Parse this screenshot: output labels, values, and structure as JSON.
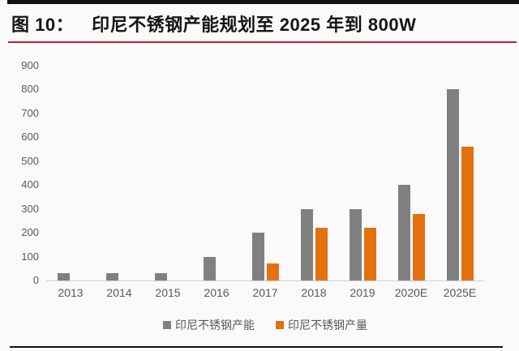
{
  "header": {
    "figure_label": "图 10：",
    "title": "印尼不锈钢产能规划至 2025 年到 800W"
  },
  "colors": {
    "capacity": "#808080",
    "production": "#e2710e",
    "top_bar": "#121212",
    "title_rule": "#c41e1e",
    "bottom_rule": "#121212",
    "axis_text": "#595959",
    "background": "#fbf9fb"
  },
  "chart_data": {
    "type": "bar",
    "title": "印尼不锈钢产能规划至 2025 年到 800W",
    "categories": [
      "2013",
      "2014",
      "2015",
      "2016",
      "2017",
      "2018",
      "2019",
      "2020E",
      "2025E"
    ],
    "series": [
      {
        "name": "印尼不锈钢产能",
        "color_key": "capacity",
        "values": [
          30,
          30,
          30,
          100,
          200,
          300,
          300,
          400,
          800
        ]
      },
      {
        "name": "印尼不锈钢产量",
        "color_key": "production",
        "values": [
          0,
          0,
          0,
          0,
          70,
          220,
          220,
          280,
          560
        ]
      }
    ],
    "xlabel": "",
    "ylabel": "",
    "ylim": [
      0,
      900
    ],
    "ytick_step": 100,
    "grid": false,
    "legend_position": "bottom"
  }
}
